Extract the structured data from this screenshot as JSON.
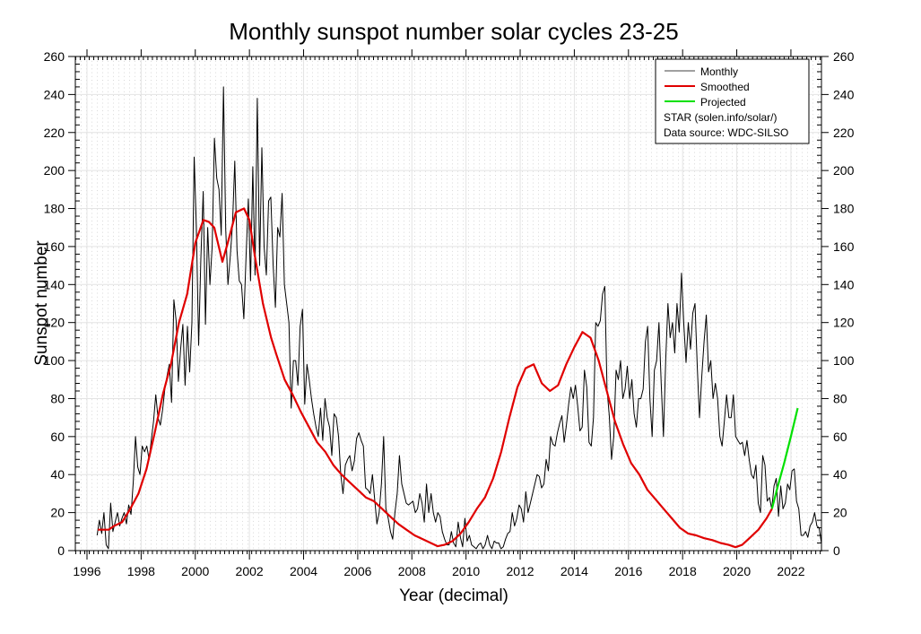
{
  "chart_data": {
    "type": "line",
    "title": "Monthly sunspot number solar cycles 23-25",
    "xlabel": "Year (decimal)",
    "ylabel": "Sunspot number",
    "xlim": [
      1995.57,
      2023.13
    ],
    "ylim": [
      0,
      260
    ],
    "grid": true,
    "legend_position": "top-right",
    "x_ticks": [
      1996,
      1998,
      2000,
      2002,
      2004,
      2006,
      2008,
      2010,
      2012,
      2014,
      2016,
      2018,
      2020,
      2022
    ],
    "x_tick_labels": [
      "1996",
      "1998",
      "2000",
      "2002",
      "2004",
      "2006",
      "2008",
      "2010",
      "2012",
      "2014",
      "2016",
      "2018",
      "2020",
      "2022"
    ],
    "y_ticks": [
      0,
      20,
      40,
      60,
      80,
      100,
      120,
      140,
      160,
      180,
      200,
      220,
      240,
      260
    ],
    "y_tick_labels": [
      "0",
      "20",
      "40",
      "60",
      "80",
      "100",
      "120",
      "140",
      "160",
      "180",
      "200",
      "220",
      "240",
      "260"
    ],
    "legend": [
      {
        "label": "Monthly",
        "color": "#808080"
      },
      {
        "label": "Smoothed",
        "color": "#e00000"
      },
      {
        "label": "Projected",
        "color": "#00e000"
      }
    ],
    "annotations": [
      "STAR (solen.info/solar/)",
      "Data source: WDC-SILSO"
    ],
    "series": [
      {
        "name": "Monthly",
        "color": "#000000",
        "start_year": 1996.375,
        "step_months": 1,
        "values": [
          8,
          16,
          9,
          20,
          3,
          1,
          25,
          10,
          15,
          20,
          13,
          17,
          20,
          14,
          24,
          19,
          36,
          60,
          44,
          40,
          55,
          52,
          55,
          48,
          58,
          68,
          82,
          70,
          66,
          74,
          85,
          92,
          98,
          78,
          132,
          121,
          89,
          106,
          119,
          87,
          118,
          94,
          120,
          207,
          170,
          108,
          154,
          189,
          119,
          170,
          140,
          160,
          217,
          196,
          190,
          166,
          244,
          169,
          140,
          155,
          172,
          205,
          158,
          142,
          140,
          122,
          155,
          185,
          142,
          202,
          145,
          238,
          150,
          212,
          160,
          145,
          184,
          186,
          150,
          128,
          170,
          165,
          188,
          140,
          130,
          120,
          75,
          100,
          100,
          87,
          118,
          127,
          77,
          98,
          90,
          80,
          72,
          65,
          60,
          75,
          58,
          80,
          70,
          65,
          50,
          72,
          70,
          60,
          40,
          30,
          45,
          48,
          50,
          42,
          47,
          59,
          62,
          58,
          55,
          33,
          32,
          30,
          40,
          27,
          14,
          20,
          35,
          60,
          22,
          17,
          10,
          6,
          20,
          30,
          50,
          35,
          30,
          25,
          24,
          25,
          26,
          20,
          22,
          30,
          25,
          15,
          35,
          20,
          30,
          20,
          15,
          20,
          18,
          10,
          6,
          3,
          3,
          10,
          4,
          2,
          15,
          7,
          2,
          17,
          5,
          8,
          3,
          2,
          1,
          3,
          4,
          1,
          3,
          8,
          3,
          1,
          5,
          4,
          4,
          1,
          2,
          6,
          9,
          10,
          20,
          13,
          17,
          24,
          22,
          15,
          31,
          20,
          25,
          30,
          35,
          40,
          39,
          33,
          35,
          48,
          42,
          60,
          56,
          55,
          62,
          67,
          71,
          57,
          66,
          77,
          86,
          80,
          87,
          76,
          63,
          65,
          95,
          86,
          57,
          55,
          70,
          120,
          118,
          121,
          135,
          139,
          85,
          71,
          48,
          60,
          95,
          90,
          100,
          80,
          85,
          97,
          80,
          90,
          72,
          65,
          80,
          80,
          85,
          110,
          118,
          80,
          60,
          95,
          100,
          120,
          88,
          60,
          100,
          130,
          112,
          120,
          104,
          130,
          115,
          146,
          120,
          99,
          120,
          106,
          125,
          130,
          97,
          70,
          92,
          110,
          124,
          94,
          100,
          80,
          88,
          80,
          60,
          55,
          68,
          82,
          70,
          70,
          82,
          60,
          58,
          56,
          57,
          50,
          58,
          48,
          40,
          38,
          45,
          25,
          20,
          50,
          45,
          26,
          28,
          22,
          34,
          38,
          18,
          34,
          22,
          25,
          35,
          32,
          42,
          43,
          26,
          22,
          8,
          8,
          10,
          7,
          13,
          15,
          20,
          13,
          12,
          4,
          6,
          10,
          8,
          4,
          12,
          3,
          5,
          9,
          4,
          3,
          2,
          5,
          3,
          2,
          1,
          1,
          2,
          3,
          2,
          0,
          2,
          6,
          3,
          2,
          1,
          5,
          6,
          5,
          2,
          11,
          15,
          0,
          7,
          15,
          34,
          22,
          14,
          10,
          9,
          12,
          18,
          24,
          22,
          25,
          27,
          37,
          23,
          50
        ],
        "note": "approximate monthly values read from the plot"
      },
      {
        "name": "Smoothed",
        "color": "#e00000",
        "x": [
          1996.4,
          1996.8,
          1997.0,
          1997.3,
          1997.6,
          1997.9,
          1998.2,
          1998.5,
          1998.8,
          1999.1,
          1999.4,
          1999.7,
          2000.0,
          2000.3,
          2000.5,
          2000.7,
          2001.0,
          2001.2,
          2001.5,
          2001.8,
          2002.0,
          2002.2,
          2002.5,
          2002.8,
          2003.0,
          2003.3,
          2003.6,
          2003.9,
          2004.2,
          2004.5,
          2004.8,
          2005.1,
          2005.4,
          2005.7,
          2006.0,
          2006.3,
          2006.6,
          2006.9,
          2007.2,
          2007.5,
          2007.8,
          2008.1,
          2008.4,
          2008.7,
          2008.95,
          2009.2,
          2009.5,
          2009.8,
          2010.1,
          2010.4,
          2010.7,
          2011.0,
          2011.3,
          2011.6,
          2011.9,
          2012.2,
          2012.5,
          2012.8,
          2013.1,
          2013.4,
          2013.7,
          2014.0,
          2014.3,
          2014.6,
          2014.9,
          2015.2,
          2015.5,
          2015.8,
          2016.1,
          2016.4,
          2016.7,
          2017.0,
          2017.3,
          2017.6,
          2017.9,
          2018.2,
          2018.5,
          2018.8,
          2019.1,
          2019.4,
          2019.7,
          2019.95,
          2020.2,
          2020.5,
          2020.8,
          2021.1,
          2021.3
        ],
        "values": [
          11,
          11,
          13,
          15,
          22,
          30,
          43,
          62,
          82,
          98,
          120,
          135,
          162,
          174,
          173,
          170,
          152,
          162,
          178,
          180,
          174,
          155,
          130,
          112,
          103,
          90,
          82,
          73,
          65,
          57,
          52,
          45,
          40,
          36,
          32,
          28,
          26,
          22,
          18,
          14,
          11,
          8,
          6,
          4,
          2.3,
          3,
          5,
          9,
          15,
          22,
          28,
          38,
          52,
          70,
          86,
          96,
          98,
          88,
          84,
          87,
          98,
          107,
          115,
          112,
          100,
          84,
          68,
          56,
          46,
          40,
          32,
          27,
          22,
          17,
          12,
          9,
          8,
          6.5,
          5.5,
          4,
          3,
          1.8,
          3,
          7,
          11,
          17,
          22
        ]
      },
      {
        "name": "Projected",
        "color": "#00e000",
        "x": [
          2021.3,
          2021.5,
          2021.75,
          2022.0,
          2022.25
        ],
        "values": [
          22,
          33,
          46,
          60,
          75
        ]
      }
    ]
  }
}
